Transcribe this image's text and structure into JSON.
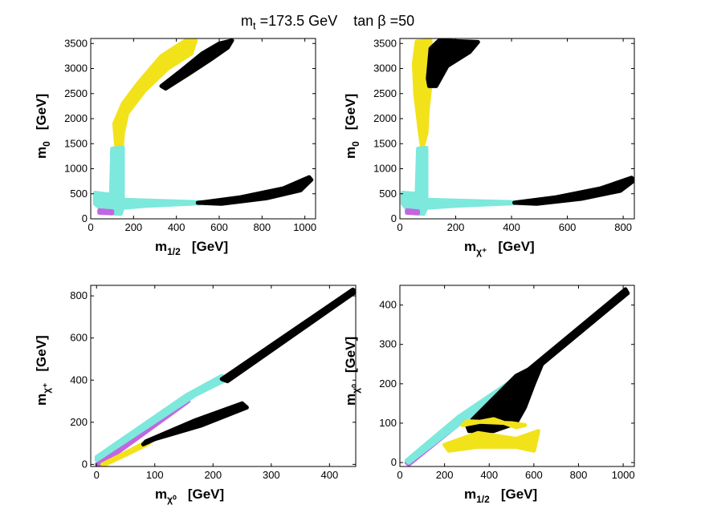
{
  "title": "m_t =173.5 GeV    tan β =50",
  "title_parts": {
    "prefix": "m",
    "sub": "t",
    "rest": " =173.5 GeV    tan β =50"
  },
  "colors": {
    "black": "#000000",
    "yellow": "#f2e21a",
    "cyan": "#7de8dc",
    "magenta": "#c266e0",
    "frame": "#000000"
  },
  "chart_data": [
    {
      "type": "scatter",
      "id": "tl",
      "xlabel": {
        "base": "m",
        "sub": "1/2",
        "unit": "[GeV]"
      },
      "ylabel": {
        "base": "m",
        "sub": "0",
        "unit": "[GeV]"
      },
      "xlim": [
        0,
        1050
      ],
      "ylim": [
        0,
        3600
      ],
      "xticks": [
        0,
        200,
        400,
        600,
        800,
        1000
      ],
      "yticks": [
        0,
        500,
        1000,
        1500,
        2000,
        2500,
        3000,
        3500
      ],
      "regions": [
        {
          "color": "yellow",
          "points": [
            [
              120,
              1400
            ],
            [
              110,
              1900
            ],
            [
              150,
              2300
            ],
            [
              220,
              2700
            ],
            [
              330,
              3250
            ],
            [
              440,
              3550
            ],
            [
              490,
              3560
            ],
            [
              470,
              3300
            ],
            [
              360,
              3000
            ],
            [
              250,
              2550
            ],
            [
              170,
              2100
            ],
            [
              150,
              1700
            ],
            [
              145,
              1400
            ]
          ]
        },
        {
          "color": "black",
          "points": [
            [
              330,
              2650
            ],
            [
              420,
              2950
            ],
            [
              520,
              3300
            ],
            [
              600,
              3500
            ],
            [
              660,
              3560
            ],
            [
              640,
              3420
            ],
            [
              560,
              3180
            ],
            [
              460,
              2900
            ],
            [
              350,
              2600
            ]
          ]
        },
        {
          "color": "cyan",
          "points": [
            [
              20,
              520
            ],
            [
              95,
              480
            ],
            [
              100,
              1400
            ],
            [
              150,
              1420
            ],
            [
              150,
              380
            ],
            [
              520,
              330
            ],
            [
              510,
              310
            ],
            [
              260,
              260
            ],
            [
              150,
              220
            ],
            [
              140,
              100
            ],
            [
              90,
              110
            ],
            [
              60,
              170
            ],
            [
              20,
              300
            ]
          ]
        },
        {
          "color": "black",
          "points": [
            [
              520,
              330
            ],
            [
              700,
              430
            ],
            [
              900,
              610
            ],
            [
              1020,
              830
            ],
            [
              1030,
              780
            ],
            [
              980,
              570
            ],
            [
              820,
              410
            ],
            [
              610,
              300
            ],
            [
              500,
              320
            ]
          ]
        },
        {
          "color": "magenta",
          "points": [
            [
              40,
              120
            ],
            [
              100,
              110
            ],
            [
              100,
              150
            ],
            [
              40,
              170
            ]
          ]
        }
      ]
    },
    {
      "type": "scatter",
      "id": "tr",
      "xlabel": {
        "base": "m",
        "sub": "χ⁺",
        "unit": "[GeV]"
      },
      "ylabel": {
        "base": "m",
        "sub": "0",
        "unit": "[GeV]"
      },
      "xlim": [
        0,
        840
      ],
      "ylim": [
        0,
        3600
      ],
      "xticks": [
        0,
        200,
        400,
        600,
        800
      ],
      "yticks": [
        0,
        500,
        1000,
        1500,
        2000,
        2500,
        3000,
        3500
      ],
      "regions": [
        {
          "color": "yellow",
          "points": [
            [
              60,
              3540
            ],
            [
              110,
              3560
            ],
            [
              110,
              2700
            ],
            [
              100,
              2200
            ],
            [
              95,
              1700
            ],
            [
              80,
              1400
            ],
            [
              70,
              1800
            ],
            [
              55,
              2500
            ],
            [
              50,
              3100
            ]
          ]
        },
        {
          "color": "black",
          "points": [
            [
              100,
              2800
            ],
            [
              110,
              3400
            ],
            [
              140,
              3560
            ],
            [
              280,
              3530
            ],
            [
              250,
              3330
            ],
            [
              170,
              3050
            ],
            [
              130,
              2650
            ],
            [
              105,
              2650
            ]
          ]
        },
        {
          "color": "cyan",
          "points": [
            [
              10,
              520
            ],
            [
              60,
              500
            ],
            [
              65,
              1400
            ],
            [
              95,
              1420
            ],
            [
              95,
              380
            ],
            [
              420,
              330
            ],
            [
              410,
              310
            ],
            [
              200,
              260
            ],
            [
              95,
              220
            ],
            [
              85,
              100
            ],
            [
              50,
              110
            ],
            [
              30,
              170
            ],
            [
              10,
              300
            ]
          ]
        },
        {
          "color": "black",
          "points": [
            [
              420,
              330
            ],
            [
              560,
              430
            ],
            [
              720,
              610
            ],
            [
              830,
              820
            ],
            [
              840,
              770
            ],
            [
              790,
              560
            ],
            [
              650,
              400
            ],
            [
              490,
              300
            ],
            [
              410,
              320
            ]
          ]
        },
        {
          "color": "magenta",
          "points": [
            [
              25,
              120
            ],
            [
              65,
              110
            ],
            [
              65,
              150
            ],
            [
              25,
              170
            ]
          ]
        }
      ]
    },
    {
      "type": "scatter",
      "id": "bl",
      "xlabel": {
        "base": "m",
        "sub": "χ⁰",
        "unit": "[GeV]"
      },
      "ylabel": {
        "base": "m",
        "sub": "χ⁺",
        "unit": "[GeV]"
      },
      "xlim": [
        -10,
        445
      ],
      "ylim": [
        -10,
        850
      ],
      "xticks": [
        0,
        100,
        200,
        300,
        400
      ],
      "yticks": [
        0,
        200,
        400,
        600,
        800
      ],
      "regions": [
        {
          "color": "magenta",
          "points": [
            [
              0,
              0
            ],
            [
              150,
              300
            ],
            [
              158,
              300
            ],
            [
              8,
              0
            ]
          ]
        },
        {
          "color": "cyan",
          "points": [
            [
              0,
              20
            ],
            [
              170,
              330
            ],
            [
              225,
              405
            ],
            [
              215,
              420
            ],
            [
              155,
              330
            ],
            [
              0,
              35
            ]
          ]
        },
        {
          "color": "black",
          "points": [
            [
              215,
              405
            ],
            [
              440,
              830
            ],
            [
              445,
              820
            ],
            [
              225,
              395
            ]
          ]
        },
        {
          "color": "yellow",
          "points": [
            [
              10,
              0
            ],
            [
              60,
              70
            ],
            [
              95,
              120
            ],
            [
              90,
              100
            ],
            [
              50,
              45
            ],
            [
              15,
              0
            ]
          ]
        },
        {
          "color": "black",
          "points": [
            [
              85,
              110
            ],
            [
              170,
              210
            ],
            [
              250,
              290
            ],
            [
              258,
              270
            ],
            [
              180,
              185
            ],
            [
              100,
              120
            ],
            [
              80,
              95
            ]
          ]
        }
      ]
    },
    {
      "type": "scatter",
      "id": "br",
      "xlabel": {
        "base": "m",
        "sub": "1/2",
        "unit": "[GeV]"
      },
      "ylabel": {
        "base": "m",
        "sub": "χ⁰",
        "unit": "[GeV]"
      },
      "xlim": [
        0,
        1050
      ],
      "ylim": [
        -10,
        450
      ],
      "xticks": [
        0,
        200,
        400,
        600,
        800,
        1000
      ],
      "yticks": [
        0,
        100,
        200,
        300,
        400
      ],
      "regions": [
        {
          "color": "magenta",
          "points": [
            [
              30,
              0
            ],
            [
              380,
              160
            ],
            [
              390,
              155
            ],
            [
              40,
              -5
            ]
          ]
        },
        {
          "color": "cyan",
          "points": [
            [
              30,
              5
            ],
            [
              260,
              115
            ],
            [
              520,
              215
            ],
            [
              515,
              200
            ],
            [
              270,
              100
            ],
            [
              40,
              0
            ]
          ]
        },
        {
          "color": "black",
          "points": [
            [
              300,
              95
            ],
            [
              520,
              220
            ],
            [
              640,
              255
            ],
            [
              600,
              200
            ],
            [
              560,
              140
            ],
            [
              520,
              100
            ],
            [
              420,
              80
            ],
            [
              310,
              80
            ]
          ]
        },
        {
          "color": "black",
          "points": [
            [
              520,
              210
            ],
            [
              1010,
              440
            ],
            [
              1020,
              430
            ],
            [
              530,
              200
            ]
          ]
        },
        {
          "color": "yellow",
          "points": [
            [
              200,
              45
            ],
            [
              350,
              75
            ],
            [
              520,
              60
            ],
            [
              620,
              80
            ],
            [
              600,
              30
            ],
            [
              520,
              40
            ],
            [
              350,
              40
            ],
            [
              220,
              30
            ]
          ]
        },
        {
          "color": "yellow",
          "points": [
            [
              280,
              95
            ],
            [
              420,
              110
            ],
            [
              520,
              90
            ],
            [
              560,
              95
            ],
            [
              500,
              100
            ],
            [
              300,
              105
            ]
          ]
        }
      ]
    }
  ]
}
